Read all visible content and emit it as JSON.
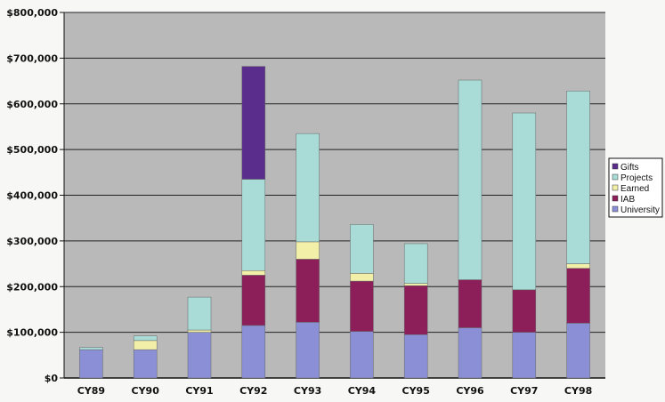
{
  "chart_data": {
    "type": "bar",
    "stacked": true,
    "title": "",
    "xlabel": "",
    "ylabel": "",
    "categories": [
      "CY89",
      "CY90",
      "CY91",
      "CY92",
      "CY93",
      "CY94",
      "CY95",
      "CY96",
      "CY97",
      "CY98"
    ],
    "ylim": [
      0,
      800000
    ],
    "yticks": [
      0,
      100000,
      200000,
      300000,
      400000,
      500000,
      600000,
      700000,
      800000
    ],
    "ytick_labels": [
      "$0",
      "$100,000",
      "$200,000",
      "$300,000",
      "$400,000",
      "$500,000",
      "$600,000",
      "$700,000",
      "$800,000"
    ],
    "grid": true,
    "legend_position": "right",
    "series": [
      {
        "name": "University",
        "color": "#8a8fd6",
        "values": [
          62000,
          62000,
          100000,
          115000,
          122000,
          102000,
          95000,
          110000,
          100000,
          120000
        ]
      },
      {
        "name": "IAB",
        "color": "#8c1e5a",
        "values": [
          0,
          0,
          0,
          110000,
          138000,
          110000,
          107000,
          105000,
          93000,
          120000
        ]
      },
      {
        "name": "Earned",
        "color": "#f2f0a8",
        "values": [
          0,
          20000,
          5000,
          10000,
          38000,
          17000,
          5000,
          0,
          0,
          10000
        ]
      },
      {
        "name": "Projects",
        "color": "#a9dcd6",
        "values": [
          5000,
          10000,
          72000,
          200000,
          237000,
          107000,
          87000,
          437000,
          387000,
          378000
        ]
      },
      {
        "name": "Gifts",
        "color": "#5a2d8c",
        "values": [
          0,
          0,
          0,
          247000,
          0,
          0,
          0,
          0,
          0,
          0
        ]
      }
    ],
    "legend_order": [
      "Gifts",
      "Projects",
      "Earned",
      "IAB",
      "University"
    ],
    "plot_background": "#b9b9b9",
    "gridline_color": "#222222"
  }
}
